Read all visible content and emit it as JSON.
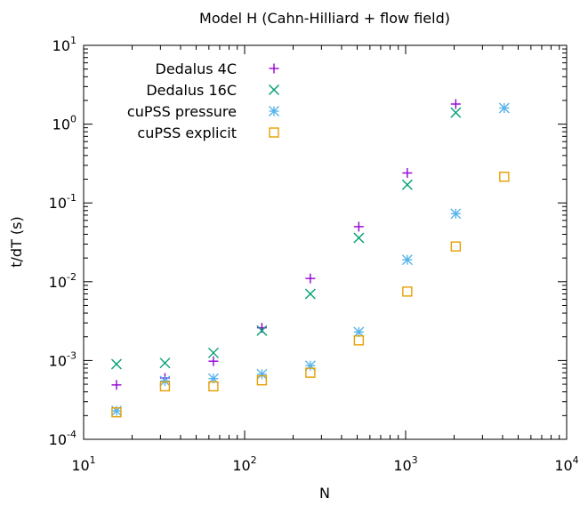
{
  "chart_data": {
    "type": "scatter",
    "title": "Model H (Cahn-Hilliard + flow field)",
    "xlabel": "N",
    "ylabel": "t/dT (s)",
    "xscale": "log",
    "yscale": "log",
    "xlim": [
      10,
      10000
    ],
    "ylim": [
      0.0001,
      10
    ],
    "x_ticks": [
      {
        "value": 10,
        "base": "10",
        "exp": "1"
      },
      {
        "value": 100,
        "base": "10",
        "exp": "2"
      },
      {
        "value": 1000,
        "base": "10",
        "exp": "3"
      },
      {
        "value": 10000,
        "base": "10",
        "exp": "4"
      }
    ],
    "y_ticks": [
      {
        "value": 0.0001,
        "base": "10",
        "exp": "-4"
      },
      {
        "value": 0.001,
        "base": "10",
        "exp": "-3"
      },
      {
        "value": 0.01,
        "base": "10",
        "exp": "-2"
      },
      {
        "value": 0.1,
        "base": "10",
        "exp": "-1"
      },
      {
        "value": 1,
        "base": "10",
        "exp": "0"
      },
      {
        "value": 10,
        "base": "10",
        "exp": "1"
      }
    ],
    "grid": false,
    "legend_position": "top-left",
    "series": [
      {
        "name": "Dedalus 4C",
        "marker": "plus",
        "color": "#9400d3",
        "points": [
          [
            16,
            0.00049
          ],
          [
            32,
            0.0006
          ],
          [
            64,
            0.00098
          ],
          [
            128,
            0.0026
          ],
          [
            256,
            0.011
          ],
          [
            512,
            0.05
          ],
          [
            1024,
            0.24
          ],
          [
            2048,
            1.8
          ]
        ]
      },
      {
        "name": "Dedalus 16C",
        "marker": "cross",
        "color": "#009e73",
        "points": [
          [
            16,
            0.0009
          ],
          [
            32,
            0.00093
          ],
          [
            64,
            0.00125
          ],
          [
            128,
            0.0024
          ],
          [
            256,
            0.007
          ],
          [
            512,
            0.036
          ],
          [
            1024,
            0.17
          ],
          [
            2048,
            1.4
          ]
        ]
      },
      {
        "name": "cuPSS pressure",
        "marker": "star",
        "color": "#56b4e9",
        "points": [
          [
            16,
            0.00023
          ],
          [
            32,
            0.00055
          ],
          [
            64,
            0.00059
          ],
          [
            128,
            0.00067
          ],
          [
            256,
            0.00086
          ],
          [
            512,
            0.0023
          ],
          [
            1024,
            0.019
          ],
          [
            2048,
            0.073
          ],
          [
            4096,
            1.6
          ]
        ]
      },
      {
        "name": "cuPSS explicit",
        "marker": "square",
        "color": "#e69f00",
        "points": [
          [
            16,
            0.00022
          ],
          [
            32,
            0.00047
          ],
          [
            64,
            0.00047
          ],
          [
            128,
            0.00056
          ],
          [
            256,
            0.0007
          ],
          [
            512,
            0.0018
          ],
          [
            1024,
            0.0075
          ],
          [
            2048,
            0.028
          ],
          [
            4096,
            0.215
          ]
        ]
      }
    ]
  }
}
